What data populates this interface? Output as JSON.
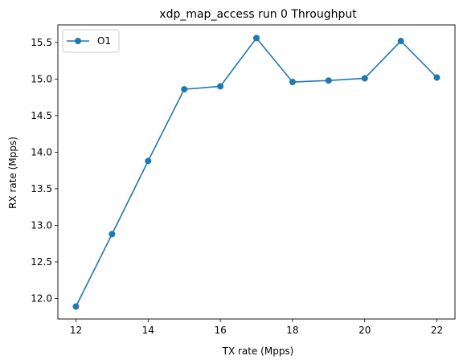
{
  "chart_data": {
    "type": "line",
    "title": "xdp_map_access run 0 Throughput",
    "xlabel": "TX rate (Mpps)",
    "ylabel": "RX rate (Mpps)",
    "xlim": [
      11.5,
      22.5
    ],
    "ylim": [
      11.72,
      15.74
    ],
    "xticks": [
      12,
      14,
      16,
      18,
      20,
      22
    ],
    "xtick_labels": [
      "12",
      "14",
      "16",
      "18",
      "20",
      "22"
    ],
    "yticks": [
      12.0,
      12.5,
      13.0,
      13.5,
      14.0,
      14.5,
      15.0,
      15.5
    ],
    "ytick_labels": [
      "12.0",
      "12.5",
      "13.0",
      "13.5",
      "14.0",
      "14.5",
      "15.0",
      "15.5"
    ],
    "grid": false,
    "legend_position": "upper-left",
    "series": [
      {
        "name": "O1",
        "color": "#1f77b4",
        "marker": "circle",
        "x": [
          12,
          13,
          14,
          15,
          16,
          17,
          18,
          19,
          20,
          21,
          22
        ],
        "y": [
          11.89,
          12.88,
          13.88,
          14.86,
          14.9,
          15.56,
          14.96,
          14.98,
          15.01,
          15.52,
          15.02
        ]
      }
    ]
  }
}
